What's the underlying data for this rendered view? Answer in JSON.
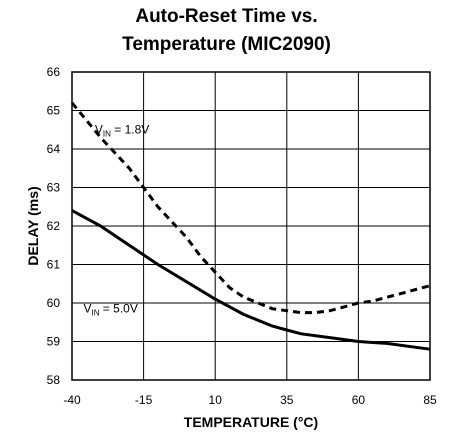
{
  "chart_data": {
    "type": "line",
    "title_line1": "Auto-Reset Time vs.",
    "title_line2": "Temperature (MIC2090)",
    "xlabel": "TEMPERATURE (°C)",
    "ylabel": "DELAY (ms)",
    "xlim": [
      -40,
      85
    ],
    "ylim": [
      58,
      66
    ],
    "x_ticks": [
      "-40",
      "-15",
      "10",
      "35",
      "60",
      "85"
    ],
    "y_ticks": [
      "58",
      "59",
      "60",
      "61",
      "62",
      "63",
      "64",
      "65",
      "66"
    ],
    "grid": true,
    "series": [
      {
        "style": "dashed",
        "color": "#000000",
        "x": [
          -40,
          -30,
          -20,
          -15,
          -10,
          0,
          5,
          10,
          15,
          20,
          25,
          30,
          35,
          40,
          45,
          50,
          55,
          60,
          65,
          70,
          75,
          80,
          85
        ],
        "y": [
          65.2,
          64.3,
          63.5,
          63.0,
          62.5,
          61.7,
          61.2,
          60.8,
          60.4,
          60.15,
          60.0,
          59.85,
          59.8,
          59.75,
          59.75,
          59.8,
          59.9,
          60.0,
          60.05,
          60.15,
          60.25,
          60.35,
          60.45
        ]
      },
      {
        "style": "solid",
        "color": "#000000",
        "x": [
          -40,
          -30,
          -20,
          -15,
          -10,
          0,
          10,
          20,
          30,
          35,
          40,
          50,
          60,
          70,
          80,
          85
        ],
        "y": [
          62.4,
          62.0,
          61.5,
          61.25,
          61.0,
          60.55,
          60.1,
          59.7,
          59.4,
          59.3,
          59.2,
          59.1,
          59.0,
          58.95,
          58.85,
          58.8
        ]
      }
    ],
    "annotations": [
      {
        "base": "V",
        "sub": "IN",
        "text": " = 1.8V",
        "x": -32,
        "y": 64.4
      },
      {
        "base": "V",
        "sub": "IN",
        "text": " = 5.0V",
        "x": -36,
        "y": 59.75
      }
    ]
  }
}
